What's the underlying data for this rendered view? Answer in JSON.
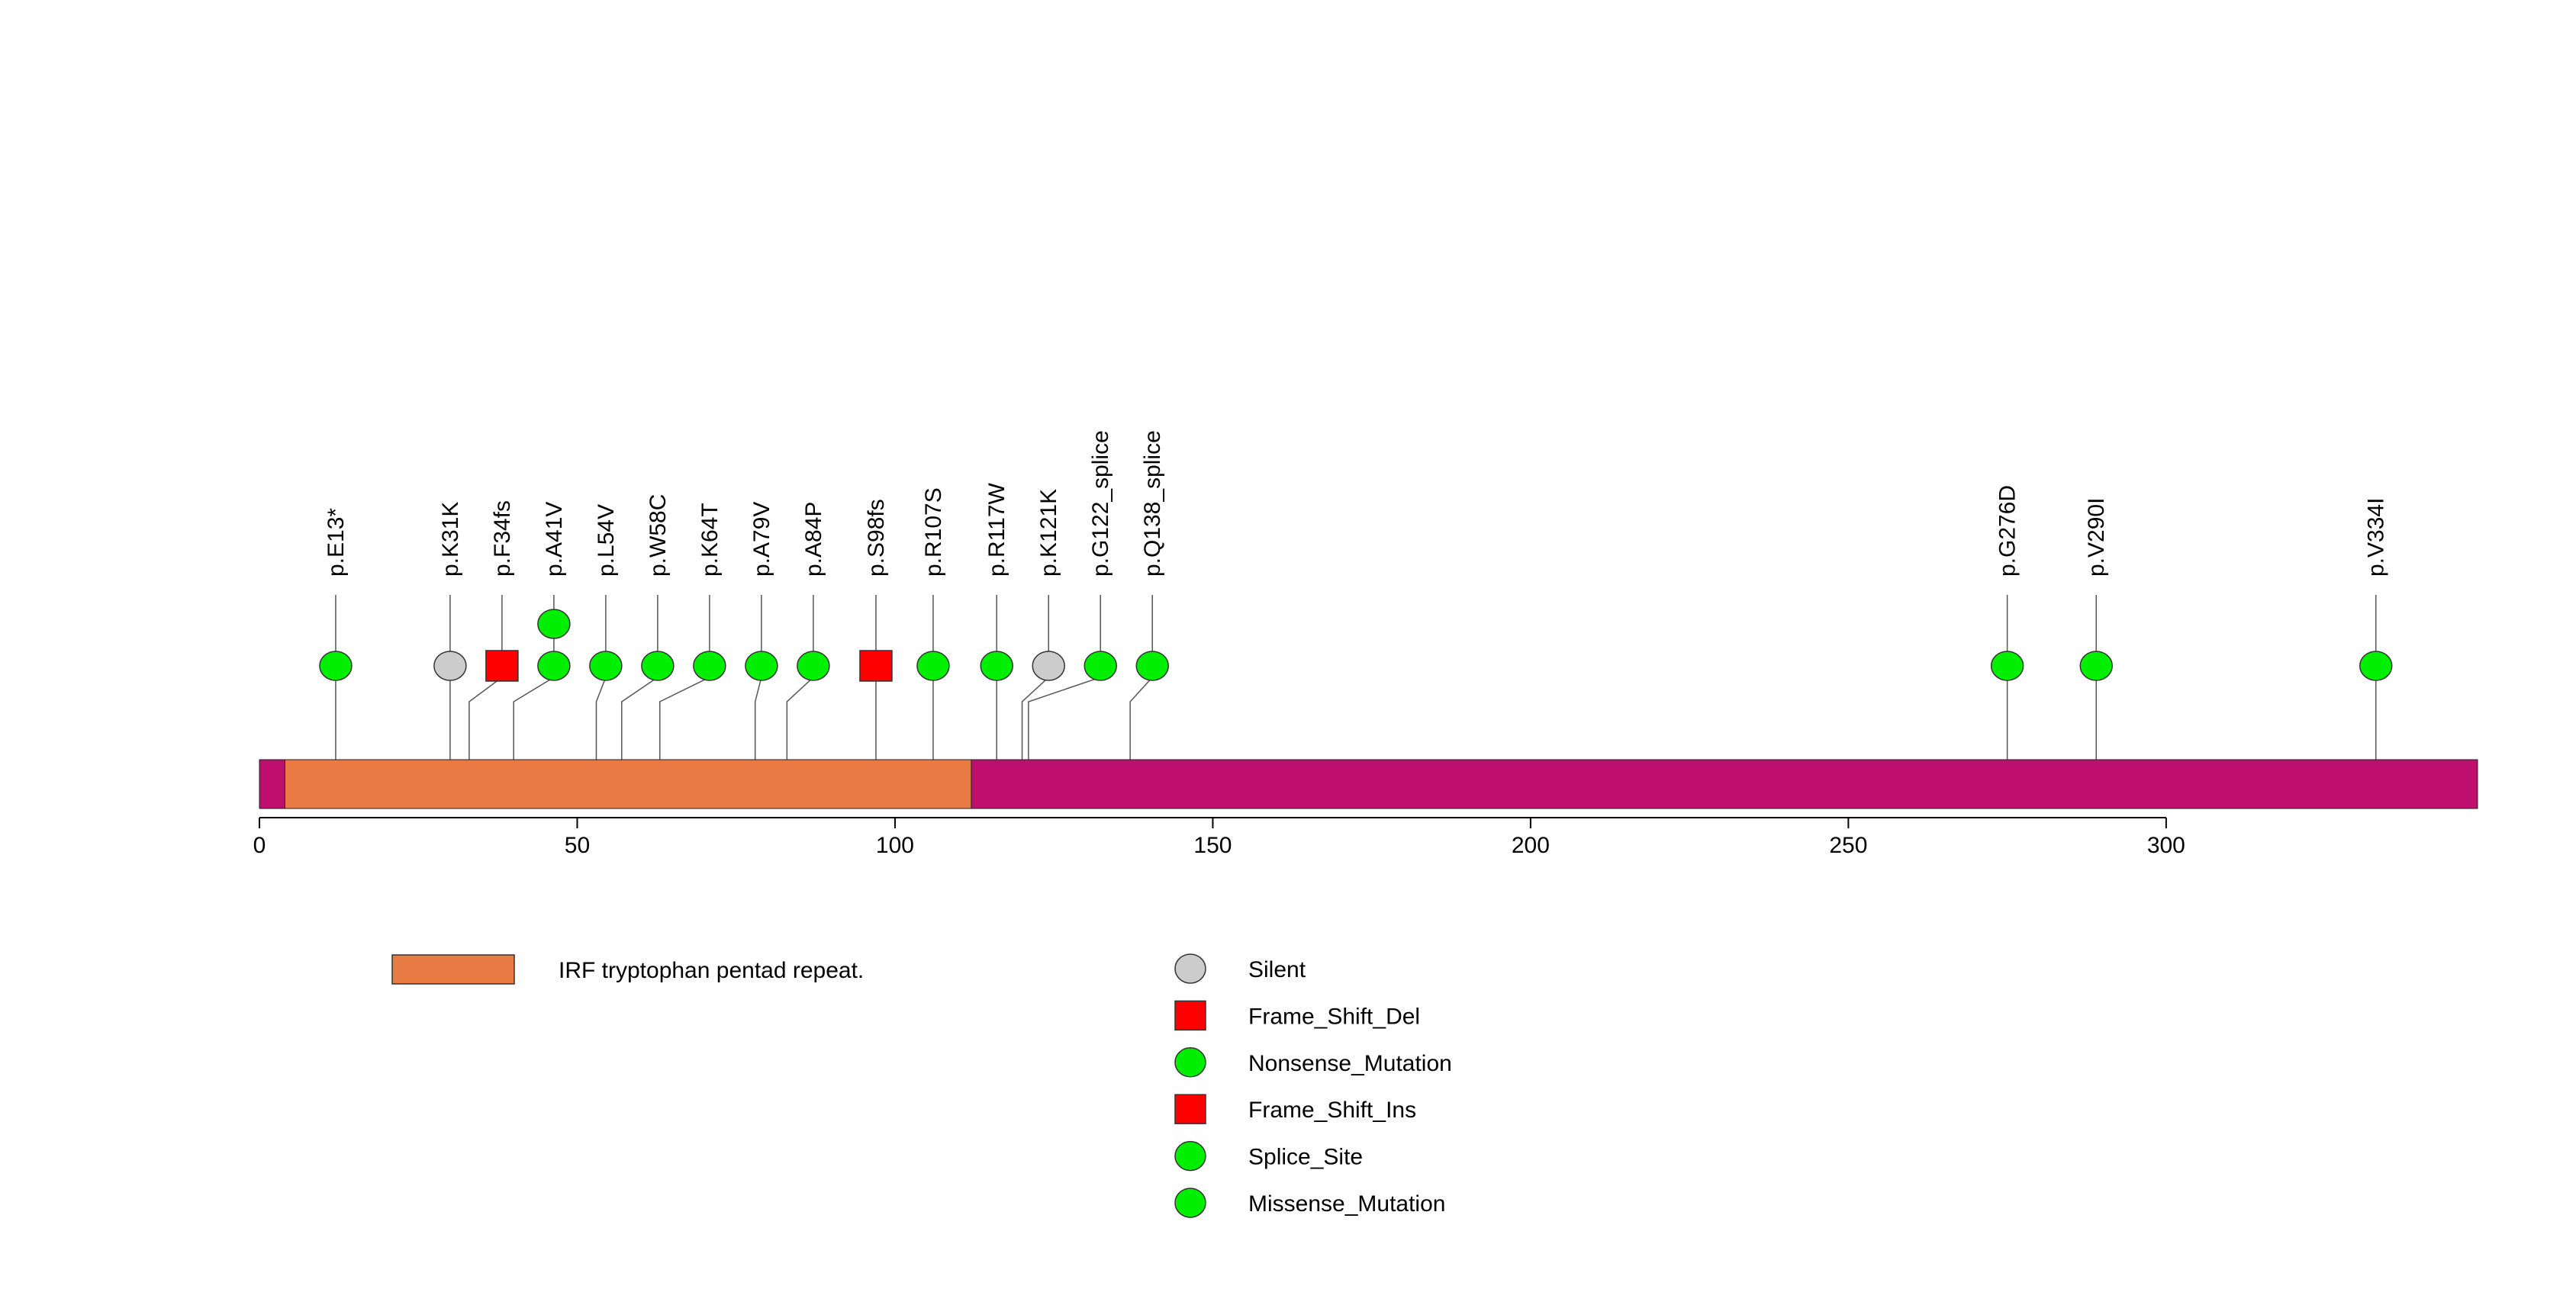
{
  "chart_data": {
    "type": "lollipop",
    "protein_length": 349,
    "xlim": [
      0,
      349
    ],
    "x_ticks": [
      0,
      50,
      100,
      150,
      200,
      250,
      300
    ],
    "backbone_color": "#be0e6e",
    "domains": [
      {
        "name": "IRF tryptophan pentad repeat.",
        "start": 4,
        "end": 112,
        "color": "#ea7a44"
      }
    ],
    "mutation_types": [
      {
        "name": "Silent",
        "shape": "circle",
        "color": "#cccccc"
      },
      {
        "name": "Frame_Shift_Del",
        "shape": "square",
        "color": "#ff0000"
      },
      {
        "name": "Nonsense_Mutation",
        "shape": "circle",
        "color": "#00ee00"
      },
      {
        "name": "Frame_Shift_Ins",
        "shape": "square",
        "color": "#ff0000"
      },
      {
        "name": "Splice_Site",
        "shape": "circle",
        "color": "#00ee00"
      },
      {
        "name": "Missense_Mutation",
        "shape": "circle",
        "color": "#00ee00"
      }
    ],
    "mutations": [
      {
        "label": "p.E13*",
        "pos": 12,
        "type": "Nonsense_Mutation",
        "count": 1
      },
      {
        "label": "p.K31K",
        "pos": 30,
        "type": "Silent",
        "count": 1
      },
      {
        "label": "p.F34fs",
        "pos": 33,
        "type": "Frame_Shift_Del",
        "count": 1
      },
      {
        "label": "p.A41V",
        "pos": 40,
        "type": "Missense_Mutation",
        "count": 2
      },
      {
        "label": "p.L54V",
        "pos": 53,
        "type": "Missense_Mutation",
        "count": 1
      },
      {
        "label": "p.W58C",
        "pos": 57,
        "type": "Missense_Mutation",
        "count": 1
      },
      {
        "label": "p.K64T",
        "pos": 63,
        "type": "Missense_Mutation",
        "count": 1
      },
      {
        "label": "p.A79V",
        "pos": 78,
        "type": "Missense_Mutation",
        "count": 1
      },
      {
        "label": "p.A84P",
        "pos": 83,
        "type": "Missense_Mutation",
        "count": 1
      },
      {
        "label": "p.S98fs",
        "pos": 97,
        "type": "Frame_Shift_Del",
        "count": 1
      },
      {
        "label": "p.R107S",
        "pos": 106,
        "type": "Missense_Mutation",
        "count": 1
      },
      {
        "label": "p.R117W",
        "pos": 116,
        "type": "Missense_Mutation",
        "count": 1
      },
      {
        "label": "p.K121K",
        "pos": 120,
        "type": "Silent",
        "count": 1
      },
      {
        "label": "p.G122_splice",
        "pos": 121,
        "type": "Splice_Site",
        "count": 1
      },
      {
        "label": "p.Q138_splice",
        "pos": 137,
        "type": "Splice_Site",
        "count": 1
      },
      {
        "label": "p.G276D",
        "pos": 275,
        "type": "Missense_Mutation",
        "count": 1
      },
      {
        "label": "p.V290I",
        "pos": 289,
        "type": "Missense_Mutation",
        "count": 1
      },
      {
        "label": "p.V334I",
        "pos": 333,
        "type": "Missense_Mutation",
        "count": 1
      }
    ]
  }
}
